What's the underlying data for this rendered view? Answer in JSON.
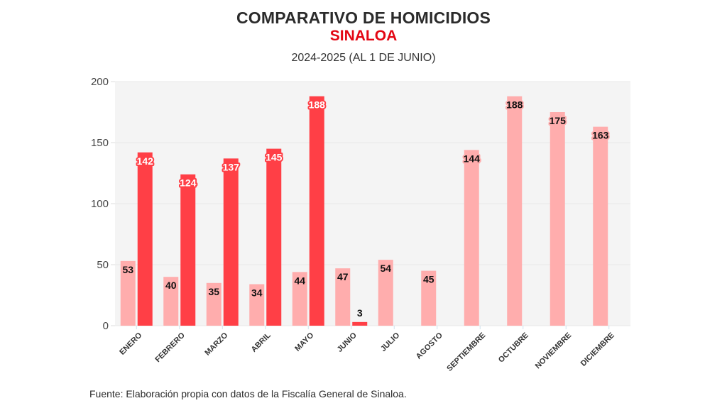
{
  "header": {
    "title": "COMPARATIVO DE HOMICIDIOS",
    "region": "SINALOA",
    "period": "2024-2025 (AL 1 DE JUNIO)"
  },
  "footer": {
    "source": "Fuente: Elaboración propia con datos de la Fiscalía General de Sinaloa."
  },
  "colors": {
    "series_2024": "#ffadad",
    "series_2025": "#ff3f46",
    "plot_background": "#f4f4f4",
    "title_red": "#e30613"
  },
  "chart_data": {
    "type": "bar",
    "title": "COMPARATIVO DE HOMICIDIOS",
    "subtitle": "SINALOA",
    "caption": "2024-2025 (AL 1 DE JUNIO)",
    "xlabel": "",
    "ylabel": "",
    "ylim": [
      0,
      200
    ],
    "yticks": [
      0,
      50,
      100,
      150,
      200
    ],
    "grid": true,
    "legend": "none",
    "categories": [
      "ENERO",
      "FEBRERO",
      "MARZO",
      "ABRIL",
      "MAYO",
      "JUNIO",
      "JULIO",
      "AGOSTO",
      "SEPTIEMBRE",
      "OCTUBRE",
      "NOVIEMBRE",
      "DICIEMBRE"
    ],
    "series": [
      {
        "name": "2024",
        "color": "#ffadad",
        "values": [
          53,
          40,
          35,
          34,
          44,
          47,
          54,
          45,
          144,
          188,
          175,
          163
        ]
      },
      {
        "name": "2025",
        "color": "#ff3f46",
        "values": [
          142,
          124,
          137,
          145,
          188,
          3,
          null,
          null,
          null,
          null,
          null,
          null
        ]
      }
    ]
  }
}
